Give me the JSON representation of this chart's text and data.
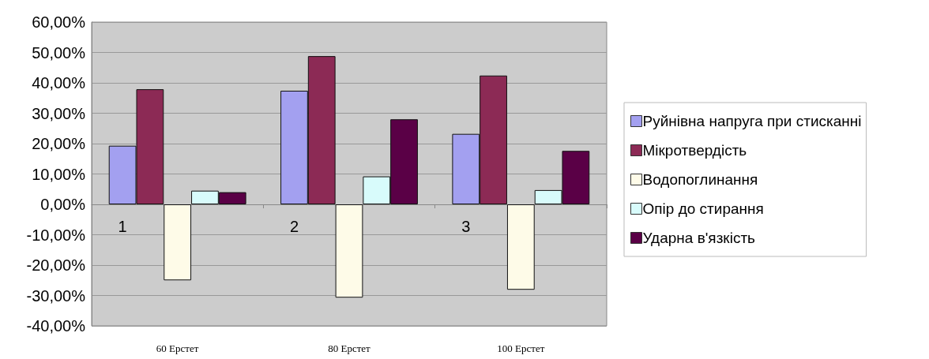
{
  "chart_data": {
    "type": "bar",
    "categories": [
      "60 Ерстет",
      "80 Ерстет",
      "100 Ерстет"
    ],
    "series": [
      {
        "name": "Руйнівна напруга при стисканні",
        "color": "#a3a0f0",
        "values": [
          19.3,
          37.4,
          23.2
        ]
      },
      {
        "name": "Мікротвердість",
        "color": "#8c2a55",
        "values": [
          37.9,
          48.8,
          42.4
        ]
      },
      {
        "name": "Водопоглинання",
        "color": "#fefbe8",
        "values": [
          -25.0,
          -30.7,
          -28.1
        ]
      },
      {
        "name": "Опір до стирання",
        "color": "#d8fbfb",
        "values": [
          4.5,
          9.2,
          4.7
        ]
      },
      {
        "name": "Ударна в'язкість",
        "color": "#5a0046",
        "values": [
          4.0,
          28.0,
          17.6
        ]
      }
    ],
    "ylim": [
      -40,
      60
    ],
    "yticks": [
      {
        "value": -40,
        "label": "-40,00%"
      },
      {
        "value": -30,
        "label": "-30,00%"
      },
      {
        "value": -20,
        "label": "-20,00%"
      },
      {
        "value": -10,
        "label": "-10,00%"
      },
      {
        "value": 0,
        "label": "0,00%"
      },
      {
        "value": 10,
        "label": "10,00%"
      },
      {
        "value": 20,
        "label": "20,00%"
      },
      {
        "value": 30,
        "label": "30,00%"
      },
      {
        "value": 40,
        "label": "40,00%"
      },
      {
        "value": 50,
        "label": "50,00%"
      },
      {
        "value": 60,
        "label": "60,00%"
      }
    ],
    "annotations": [
      "1",
      "2",
      "3"
    ],
    "grid": "y",
    "legend": "right"
  }
}
